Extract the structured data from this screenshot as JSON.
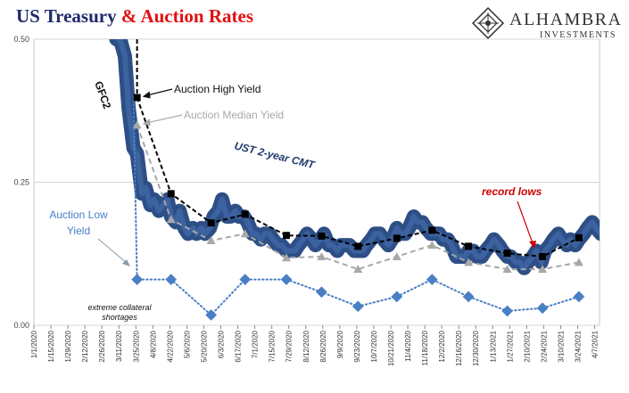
{
  "title": {
    "part1": "US Treasury",
    "part2": "& Auction Rates"
  },
  "logo": {
    "name": "ALHAMBRA",
    "tagline": "INVESTMENTS"
  },
  "colors": {
    "cmt_band": "#2d4f86",
    "high": "#000000",
    "median": "#a8a8a8",
    "low": "#4a7fc4",
    "record_lows": "#cc0000",
    "title_blue": "#1f2a6b",
    "title_red": "#e01010"
  },
  "chart_data": {
    "type": "line",
    "title": "US Treasury & Auction Rates",
    "ylim": [
      0,
      0.5
    ],
    "yticks": [
      "0.00",
      "0.25",
      "0.50"
    ],
    "grid": true,
    "x_tick_labels": [
      "1/1/2020",
      "1/15/2020",
      "1/29/2020",
      "2/12/2020",
      "2/26/2020",
      "3/11/2020",
      "3/25/2020",
      "4/8/2020",
      "4/22/2020",
      "5/6/2020",
      "5/20/2020",
      "6/3/2020",
      "6/17/2020",
      "7/1/2020",
      "7/15/2020",
      "7/29/2020",
      "8/12/2020",
      "8/26/2020",
      "9/9/2020",
      "9/23/2020",
      "10/7/2020",
      "10/21/2020",
      "11/4/2020",
      "11/18/2020",
      "12/2/2020",
      "12/16/2020",
      "12/30/2020",
      "1/13/2021",
      "1/27/2021",
      "2/10/2021",
      "2/24/2021",
      "3/10/2021",
      "3/24/2021",
      "4/7/2021"
    ],
    "series": [
      {
        "name": "UST 2-year CMT",
        "style": "band",
        "x": [
          "3/9/2020",
          "3/12/2020",
          "3/16/2020",
          "3/19/2020",
          "3/23/2020",
          "3/26/2020",
          "3/30/2020",
          "4/2/2020",
          "4/6/2020",
          "4/9/2020",
          "4/13/2020",
          "4/16/2020",
          "4/20/2020",
          "4/23/2020",
          "4/27/2020",
          "4/30/2020",
          "5/4/2020",
          "5/7/2020",
          "5/11/2020",
          "5/14/2020",
          "5/18/2020",
          "5/21/2020",
          "5/25/2020",
          "5/28/2020",
          "6/1/2020",
          "6/4/2020",
          "6/8/2020",
          "6/11/2020",
          "6/15/2020",
          "6/18/2020",
          "6/22/2020",
          "6/25/2020",
          "6/29/2020",
          "7/2/2020",
          "7/6/2020",
          "7/9/2020",
          "7/13/2020",
          "7/16/2020",
          "7/20/2020",
          "7/23/2020",
          "7/27/2020",
          "7/30/2020",
          "8/3/2020",
          "8/6/2020",
          "8/10/2020",
          "8/13/2020",
          "8/17/2020",
          "8/20/2020",
          "8/24/2020",
          "8/27/2020",
          "8/31/2020",
          "9/3/2020",
          "9/7/2020",
          "9/10/2020",
          "9/14/2020",
          "9/17/2020",
          "9/21/2020",
          "9/24/2020",
          "9/28/2020",
          "10/1/2020",
          "10/5/2020",
          "10/8/2020",
          "10/12/2020",
          "10/15/2020",
          "10/19/2020",
          "10/22/2020",
          "10/26/2020",
          "10/29/2020",
          "11/2/2020",
          "11/5/2020",
          "11/9/2020",
          "11/12/2020",
          "11/16/2020",
          "11/19/2020",
          "11/23/2020",
          "11/26/2020",
          "11/30/2020",
          "12/3/2020",
          "12/7/2020",
          "12/10/2020",
          "12/14/2020",
          "12/17/2020",
          "12/21/2020",
          "12/24/2020",
          "12/28/2020",
          "12/31/2020",
          "1/4/2021",
          "1/7/2021",
          "1/11/2021",
          "1/14/2021",
          "1/18/2021",
          "1/21/2021",
          "1/25/2021",
          "1/28/2021",
          "2/1/2021",
          "2/4/2021",
          "2/8/2021",
          "2/11/2021",
          "2/15/2021",
          "2/18/2021",
          "2/22/2021",
          "2/25/2021",
          "3/1/2021",
          "3/4/2021",
          "3/8/2021",
          "3/11/2021",
          "3/15/2021",
          "3/18/2021",
          "3/22/2021",
          "3/25/2021",
          "3/29/2021",
          "4/1/2021",
          "4/5/2021",
          "4/8/2021",
          "4/12/2021",
          "4/15/2021"
        ],
        "values": [
          0.5,
          0.5,
          0.47,
          0.38,
          0.31,
          0.3,
          0.23,
          0.24,
          0.21,
          0.22,
          0.2,
          0.21,
          0.22,
          0.19,
          0.18,
          0.2,
          0.17,
          0.16,
          0.17,
          0.16,
          0.17,
          0.16,
          0.17,
          0.19,
          0.2,
          0.22,
          0.19,
          0.19,
          0.2,
          0.19,
          0.19,
          0.18,
          0.16,
          0.16,
          0.15,
          0.16,
          0.16,
          0.15,
          0.14,
          0.14,
          0.13,
          0.13,
          0.13,
          0.14,
          0.15,
          0.16,
          0.15,
          0.14,
          0.15,
          0.16,
          0.14,
          0.14,
          0.13,
          0.14,
          0.14,
          0.14,
          0.13,
          0.13,
          0.13,
          0.14,
          0.15,
          0.16,
          0.16,
          0.15,
          0.14,
          0.15,
          0.17,
          0.16,
          0.16,
          0.17,
          0.19,
          0.18,
          0.18,
          0.17,
          0.16,
          0.16,
          0.16,
          0.15,
          0.15,
          0.14,
          0.12,
          0.12,
          0.12,
          0.13,
          0.13,
          0.12,
          0.12,
          0.13,
          0.14,
          0.15,
          0.14,
          0.13,
          0.12,
          0.12,
          0.11,
          0.11,
          0.1,
          0.11,
          0.12,
          0.13,
          0.11,
          0.13,
          0.14,
          0.15,
          0.16,
          0.15,
          0.14,
          0.15,
          0.14,
          0.15,
          0.16,
          0.17,
          0.18,
          0.17,
          0.16,
          0.16
        ]
      },
      {
        "name": "Auction High Yield",
        "style": "dash-square",
        "x": [
          "3/26/2020",
          "4/23/2020",
          "5/26/2020",
          "6/23/2020",
          "7/27/2020",
          "8/25/2020",
          "9/24/2020",
          "10/26/2020",
          "11/24/2020",
          "12/24/2020",
          "1/25/2021",
          "2/23/2021",
          "3/25/2021"
        ],
        "values": [
          0.398,
          0.23,
          0.179,
          0.194,
          0.157,
          0.156,
          0.138,
          0.152,
          0.166,
          0.138,
          0.126,
          0.12,
          0.153
        ]
      },
      {
        "name": "Auction Median Yield",
        "style": "dash-triangle",
        "x": [
          "3/26/2020",
          "4/23/2020",
          "5/26/2020",
          "6/23/2020",
          "7/27/2020",
          "8/25/2020",
          "9/24/2020",
          "10/26/2020",
          "11/24/2020",
          "12/24/2020",
          "1/25/2021",
          "2/23/2021",
          "3/25/2021"
        ],
        "values": [
          0.35,
          0.185,
          0.148,
          0.16,
          0.118,
          0.12,
          0.098,
          0.12,
          0.14,
          0.11,
          0.098,
          0.098,
          0.11
        ]
      },
      {
        "name": "Auction Low Yield",
        "style": "dot-diamond",
        "x": [
          "3/23/2020",
          "3/26/2020",
          "4/23/2020",
          "5/26/2020",
          "6/23/2020",
          "7/27/2020",
          "8/25/2020",
          "9/24/2020",
          "10/26/2020",
          "11/24/2020",
          "12/24/2020",
          "1/25/2021",
          "2/23/2021",
          "3/25/2021"
        ],
        "values": [
          0.4,
          0.08,
          0.08,
          0.018,
          0.08,
          0.08,
          0.058,
          0.033,
          0.05,
          0.08,
          0.05,
          0.025,
          0.03,
          0.05
        ]
      }
    ],
    "annotations": {
      "gfc2": "GFC2",
      "auction_high": "Auction High Yield",
      "auction_median": "Auction Median Yield",
      "ust_cmt": "UST 2-year CMT",
      "auction_low_line1": "Auction Low",
      "auction_low_line2": "Yield",
      "record_lows": "record lows",
      "collateral_line1": "extreme collateral",
      "collateral_line2": "shortages"
    }
  }
}
